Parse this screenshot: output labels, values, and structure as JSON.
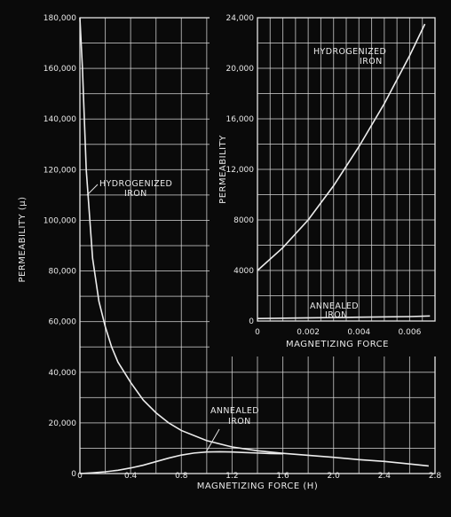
{
  "chart_data": [
    {
      "id": "main",
      "type": "line",
      "xlabel": "MAGNETIZING FORCE (H)",
      "ylabel": "PERMEABILITY (μ)",
      "xlim": [
        0,
        2.8
      ],
      "ylim": [
        0,
        180000
      ],
      "grid": true,
      "x_ticks": [
        0,
        0.4,
        0.8,
        1.2,
        1.6,
        2.0,
        2.4,
        2.8
      ],
      "x_tick_labels": [
        "0",
        "0.4",
        "0.8",
        "1.2",
        "1.6",
        "2.0",
        "2.4",
        "2.8"
      ],
      "y_ticks": [
        0,
        20000,
        40000,
        60000,
        80000,
        100000,
        120000,
        140000,
        160000,
        180000
      ],
      "y_tick_labels": [
        "0",
        "20,000",
        "40,000",
        "60,000",
        "80,000",
        "100,000",
        "120,000",
        "140,000",
        "160,000",
        "180,000"
      ],
      "annotations": [
        {
          "id": "hydrogenized",
          "lines": [
            "HYDROGENIZED",
            "IRON"
          ],
          "series": "Hydrogenized iron"
        },
        {
          "id": "annealed",
          "lines": [
            "ANNEALED",
            "IRON"
          ],
          "series": "Annealed iron"
        }
      ],
      "series": [
        {
          "name": "Hydrogenized iron",
          "x": [
            0.0,
            0.02,
            0.05,
            0.1,
            0.15,
            0.2,
            0.25,
            0.3,
            0.4,
            0.5,
            0.6,
            0.7,
            0.8,
            1.0,
            1.2,
            1.4,
            1.6,
            1.8,
            2.0,
            2.2,
            2.4,
            2.6,
            2.75
          ],
          "y": [
            180000,
            160000,
            120000,
            85000,
            68000,
            58000,
            50000,
            44000,
            36000,
            29000,
            24000,
            20000,
            17000,
            13000,
            10500,
            9000,
            8000,
            7200,
            6400,
            5500,
            4800,
            3800,
            3000
          ]
        },
        {
          "name": "Annealed iron",
          "x": [
            0.0,
            0.1,
            0.2,
            0.3,
            0.4,
            0.5,
            0.6,
            0.7,
            0.8,
            0.9,
            1.0,
            1.1,
            1.2,
            1.3,
            1.4,
            1.5,
            1.6
          ],
          "y": [
            0,
            300,
            700,
            1300,
            2200,
            3300,
            4700,
            6100,
            7300,
            8100,
            8500,
            8600,
            8500,
            8300,
            8100,
            7900,
            7800
          ]
        }
      ]
    },
    {
      "id": "inset",
      "type": "line",
      "xlabel": "MAGNETIZING FORCE",
      "ylabel": "PERMEABILITY",
      "xlim": [
        0,
        0.007
      ],
      "ylim": [
        0,
        24000
      ],
      "grid": true,
      "x_ticks": [
        0,
        0.002,
        0.004,
        0.006
      ],
      "x_tick_labels": [
        "0",
        "0.002",
        "0.004",
        "0.006"
      ],
      "y_ticks": [
        0,
        4000,
        8000,
        12000,
        16000,
        20000,
        24000
      ],
      "y_tick_labels": [
        "0",
        "4000",
        "8000",
        "12,000",
        "16,000",
        "20,000",
        "24,000"
      ],
      "annotations": [
        {
          "id": "hydrogenized",
          "lines": [
            "HYDROGENIZED",
            "IRON"
          ],
          "series": "Hydrogenized iron"
        },
        {
          "id": "annealed",
          "lines": [
            "ANNEALED",
            "IRON"
          ],
          "series": "Annealed iron"
        }
      ],
      "series": [
        {
          "name": "Hydrogenized iron",
          "x": [
            0.0,
            0.001,
            0.002,
            0.003,
            0.004,
            0.005,
            0.006,
            0.0066
          ],
          "y": [
            4000,
            5800,
            8000,
            10700,
            13800,
            17200,
            21000,
            23500
          ]
        },
        {
          "name": "Annealed iron",
          "x": [
            0.0,
            0.002,
            0.004,
            0.006,
            0.0068
          ],
          "y": [
            200,
            250,
            300,
            350,
            400
          ]
        }
      ]
    }
  ]
}
